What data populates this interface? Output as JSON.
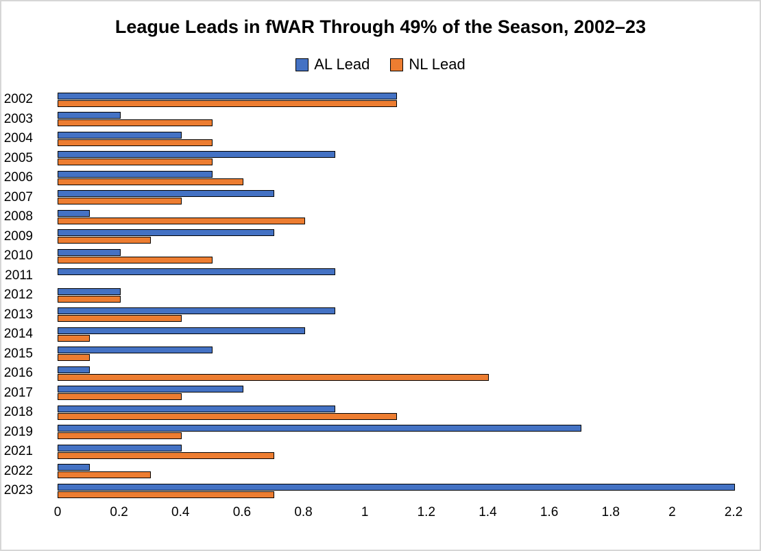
{
  "chart_data": {
    "type": "bar",
    "orientation": "horizontal",
    "title": "League Leads in fWAR Through 49% of the Season, 2002–23",
    "categories": [
      "2002",
      "2003",
      "2004",
      "2005",
      "2006",
      "2007",
      "2008",
      "2009",
      "2010",
      "2011",
      "2012",
      "2013",
      "2014",
      "2015",
      "2016",
      "2017",
      "2018",
      "2019",
      "2021",
      "2022",
      "2023"
    ],
    "series": [
      {
        "name": "AL Lead",
        "color": "#4472C4",
        "values": [
          1.1,
          0.2,
          0.4,
          0.9,
          0.5,
          0.7,
          0.1,
          0.7,
          0.2,
          0.9,
          0.2,
          0.9,
          0.8,
          0.5,
          0.1,
          0.6,
          0.9,
          1.7,
          0.4,
          0.1,
          2.2
        ]
      },
      {
        "name": "NL Lead",
        "color": "#ED7D31",
        "values": [
          1.1,
          0.5,
          0.5,
          0.5,
          0.6,
          0.4,
          0.8,
          0.3,
          0.5,
          0,
          0.2,
          0.4,
          0.1,
          0.1,
          1.4,
          0.4,
          1.1,
          0.4,
          0.7,
          0.3,
          0.7
        ]
      }
    ],
    "xlim": [
      0,
      2.2
    ],
    "xticks": [
      0,
      0.2,
      0.4,
      0.6,
      0.8,
      1,
      1.2,
      1.4,
      1.6,
      1.8,
      2,
      2.2
    ],
    "grid": false,
    "legend_position": "top",
    "bar_border_color": "#000000",
    "background_color": "#FFFFFF"
  }
}
